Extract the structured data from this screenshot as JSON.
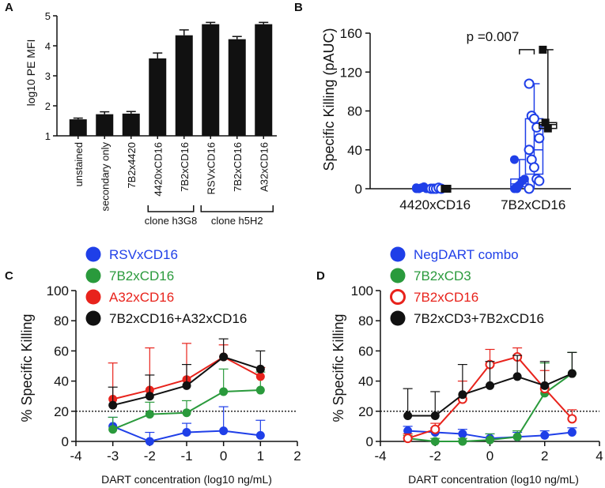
{
  "colors": {
    "black": "#111111",
    "blue": "#1f3fe8",
    "green": "#2a9a3c",
    "red": "#e8231c",
    "bar": "#111111"
  },
  "chart_data": [
    {
      "panel": "A",
      "type": "bar",
      "ylabel": "log10 PE MFI",
      "ylim": [
        1,
        5
      ],
      "yticks": [
        "1",
        "2",
        "3",
        "4",
        "5"
      ],
      "categories": [
        "unstained",
        "secondary only",
        "7B2x4420",
        "4420xCD16",
        "7B2xCD16",
        "RSVxCD16",
        "7B2xCD16",
        "A32xCD16"
      ],
      "values": [
        1.55,
        1.72,
        1.74,
        3.58,
        4.35,
        4.72,
        4.22,
        4.72
      ],
      "errors": [
        0.04,
        0.08,
        0.07,
        0.18,
        0.18,
        0.06,
        0.09,
        0.06
      ],
      "groups": [
        {
          "label": "clone h3G8",
          "from": 3,
          "to": 4
        },
        {
          "label": "clone h5H2",
          "from": 5,
          "to": 7
        }
      ]
    },
    {
      "panel": "B",
      "type": "scatter",
      "ylabel": "Specific Killing (pAUC)",
      "ylim": [
        0,
        160
      ],
      "yticks": [
        "0",
        "40",
        "80",
        "120",
        "160"
      ],
      "categories": [
        "4420xCD16",
        "7B2xCD16"
      ],
      "annotation": "p =0.007",
      "series": [
        {
          "name": "4420xCD16 filled",
          "marker": "filled-circle",
          "color": "blue",
          "x": 0.82,
          "points": [
            0,
            0,
            1,
            2,
            0,
            1,
            0
          ]
        },
        {
          "name": "4420xCD16 open",
          "marker": "open-circle",
          "color": "blue",
          "x": 1.12,
          "points": [
            0,
            0,
            0,
            1,
            0
          ]
        },
        {
          "name": "4420xCD16 square",
          "marker": "square",
          "color": "black",
          "x": 1.4,
          "points": [
            0,
            0
          ]
        },
        {
          "name": "7B2xCD16 filled",
          "marker": "filled-circle",
          "color": "blue",
          "x": 2.82,
          "points": [
            0,
            2,
            4,
            8,
            10,
            30,
            0
          ],
          "box": [
            0,
            2,
            5,
            10,
            30
          ]
        },
        {
          "name": "7B2xCD16 open",
          "marker": "open-circle",
          "color": "blue",
          "x": 3.12,
          "points": [
            108,
            75,
            72,
            63,
            52,
            40,
            30,
            22,
            10,
            8,
            0
          ],
          "box": [
            0,
            15,
            40,
            72,
            108
          ]
        },
        {
          "name": "7B2xCD16 square",
          "marker": "square",
          "color": "black",
          "x": 3.4,
          "points": [
            143,
            68,
            62
          ],
          "box": [
            62,
            62,
            66,
            68,
            143
          ]
        }
      ]
    },
    {
      "panel": "C",
      "type": "line",
      "xlabel": "DART concentration (log10 ng/mL)",
      "ylabel": "% Specific Killing",
      "xlim": [
        -4,
        2
      ],
      "ylim": [
        0,
        100
      ],
      "xticks": [
        "-4",
        "-3",
        "-2",
        "-1",
        "0",
        "1",
        "2"
      ],
      "yticks": [
        "0",
        "20",
        "40",
        "60",
        "80",
        "100"
      ],
      "threshold": 20,
      "series": [
        {
          "name": "RSVxCD16",
          "color": "blue",
          "marker": "filled",
          "x": [
            -3,
            -2,
            -1,
            0,
            1
          ],
          "y": [
            10,
            0,
            6,
            7,
            4
          ],
          "err": [
            6,
            6,
            6,
            16,
            10
          ]
        },
        {
          "name": "7B2xCD16",
          "color": "green",
          "marker": "filled",
          "x": [
            -3,
            -2,
            -1,
            0,
            1
          ],
          "y": [
            8,
            18,
            19,
            33,
            34
          ],
          "err": [
            8,
            8,
            8,
            15,
            12
          ]
        },
        {
          "name": "A32xCD16",
          "color": "red",
          "marker": "filled",
          "x": [
            -3,
            -2,
            -1,
            0,
            1
          ],
          "y": [
            28,
            34,
            41,
            56,
            43
          ],
          "err": [
            24,
            28,
            24,
            8,
            6
          ]
        },
        {
          "name": "7B2xCD16+A32xCD16",
          "color": "black",
          "marker": "filled",
          "x": [
            -3,
            -2,
            -1,
            0,
            1
          ],
          "y": [
            24,
            30,
            37,
            56,
            48
          ],
          "err": [
            12,
            14,
            14,
            12,
            12
          ]
        }
      ]
    },
    {
      "panel": "D",
      "type": "line",
      "xlabel": "DART concentration (log10 ng/mL)",
      "ylabel": "% Specific Killing",
      "xlim": [
        -4,
        4
      ],
      "ylim": [
        0,
        100
      ],
      "xticks": [
        "-4",
        "-2",
        "0",
        "2",
        "4"
      ],
      "yticks": [
        "0",
        "20",
        "40",
        "60",
        "80",
        "100"
      ],
      "threshold": 20,
      "series": [
        {
          "name": "NegDART combo",
          "color": "blue",
          "marker": "filled",
          "x": [
            -3,
            -2,
            -1,
            0,
            1,
            2,
            3
          ],
          "y": [
            7,
            6,
            5,
            2,
            3,
            4,
            6
          ],
          "err": [
            3,
            3,
            3,
            3,
            3,
            3,
            3
          ]
        },
        {
          "name": "7B2xCD3",
          "color": "green",
          "marker": "filled",
          "x": [
            -3,
            -2,
            -1,
            0,
            1,
            2,
            3
          ],
          "y": [
            2,
            0,
            0,
            1,
            3,
            32,
            45
          ],
          "err": [
            2,
            2,
            2,
            4,
            4,
            20,
            14
          ]
        },
        {
          "name": "7B2xCD16",
          "color": "red",
          "marker": "open",
          "x": [
            -3,
            -2,
            -1,
            0,
            1,
            2,
            3
          ],
          "y": [
            2,
            8,
            28,
            51,
            56,
            35,
            15
          ],
          "err": [
            3,
            4,
            12,
            10,
            6,
            12,
            6
          ]
        },
        {
          "name": "7B2xCD3+7B2xCD16",
          "color": "black",
          "marker": "filled",
          "x": [
            -3,
            -2,
            -1,
            0,
            1,
            2,
            3
          ],
          "y": [
            17,
            17,
            31,
            37,
            43,
            37,
            45
          ],
          "err": [
            18,
            16,
            20,
            16,
            14,
            16,
            14
          ]
        }
      ]
    }
  ]
}
